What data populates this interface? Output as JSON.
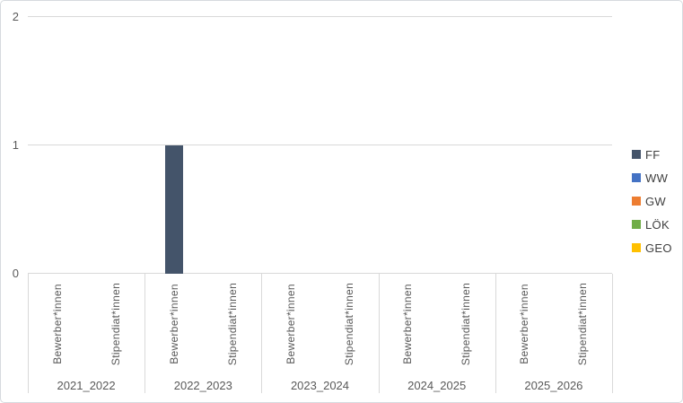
{
  "chart": {
    "background_color": "#FFFFFF",
    "frame_border_color": "#D6DADE",
    "grid_color": "#D9D9D9",
    "axis_text_color": "#595959",
    "legend_text_color": "#404040"
  },
  "chart_data": {
    "type": "bar",
    "title": "",
    "categories": [
      "2021_2022",
      "2022_2023",
      "2023_2024",
      "2024_2025",
      "2025_2026"
    ],
    "subcategories": [
      "Bewerber*innen",
      "Stipendiat*innen"
    ],
    "series": [
      {
        "name": "FF",
        "color": "#44546A",
        "values": [
          [
            0,
            0
          ],
          [
            1,
            0
          ],
          [
            0,
            0
          ],
          [
            0,
            0
          ],
          [
            0,
            0
          ]
        ]
      },
      {
        "name": "WW",
        "color": "#4472C4",
        "values": [
          [
            0,
            0
          ],
          [
            0,
            0
          ],
          [
            0,
            0
          ],
          [
            0,
            0
          ],
          [
            0,
            0
          ]
        ]
      },
      {
        "name": "GW",
        "color": "#ED7D31",
        "values": [
          [
            0,
            0
          ],
          [
            0,
            0
          ],
          [
            0,
            0
          ],
          [
            0,
            0
          ],
          [
            0,
            0
          ]
        ]
      },
      {
        "name": "LÖK",
        "color": "#70AD47",
        "values": [
          [
            0,
            0
          ],
          [
            0,
            0
          ],
          [
            0,
            0
          ],
          [
            0,
            0
          ],
          [
            0,
            0
          ]
        ]
      },
      {
        "name": "GEO",
        "color": "#FFC000",
        "values": [
          [
            0,
            0
          ],
          [
            0,
            0
          ],
          [
            0,
            0
          ],
          [
            0,
            0
          ],
          [
            0,
            0
          ]
        ]
      }
    ],
    "y_axis": {
      "min": 0,
      "max": 2,
      "ticks": [
        0,
        1,
        2
      ]
    },
    "grid": true,
    "legend_position": "right"
  }
}
